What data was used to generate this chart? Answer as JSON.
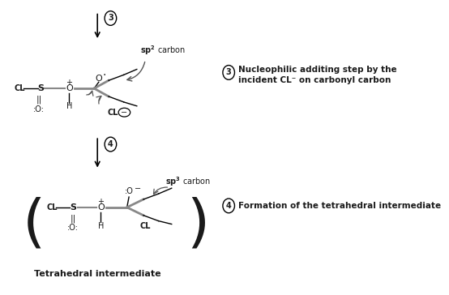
{
  "bg_color": "#ffffff",
  "fig_width": 5.54,
  "fig_height": 3.64,
  "dpi": 100,
  "step3_note_line1": "Nucleophilic additing step by the",
  "step3_note_line2": "incident CL⁻ on carbonyl carbon",
  "step4_note": "Formation of the tetrahedral intermediate",
  "tetrahedral_label": "Tetrahedral intermediate",
  "text_color": "#1a1a1a"
}
